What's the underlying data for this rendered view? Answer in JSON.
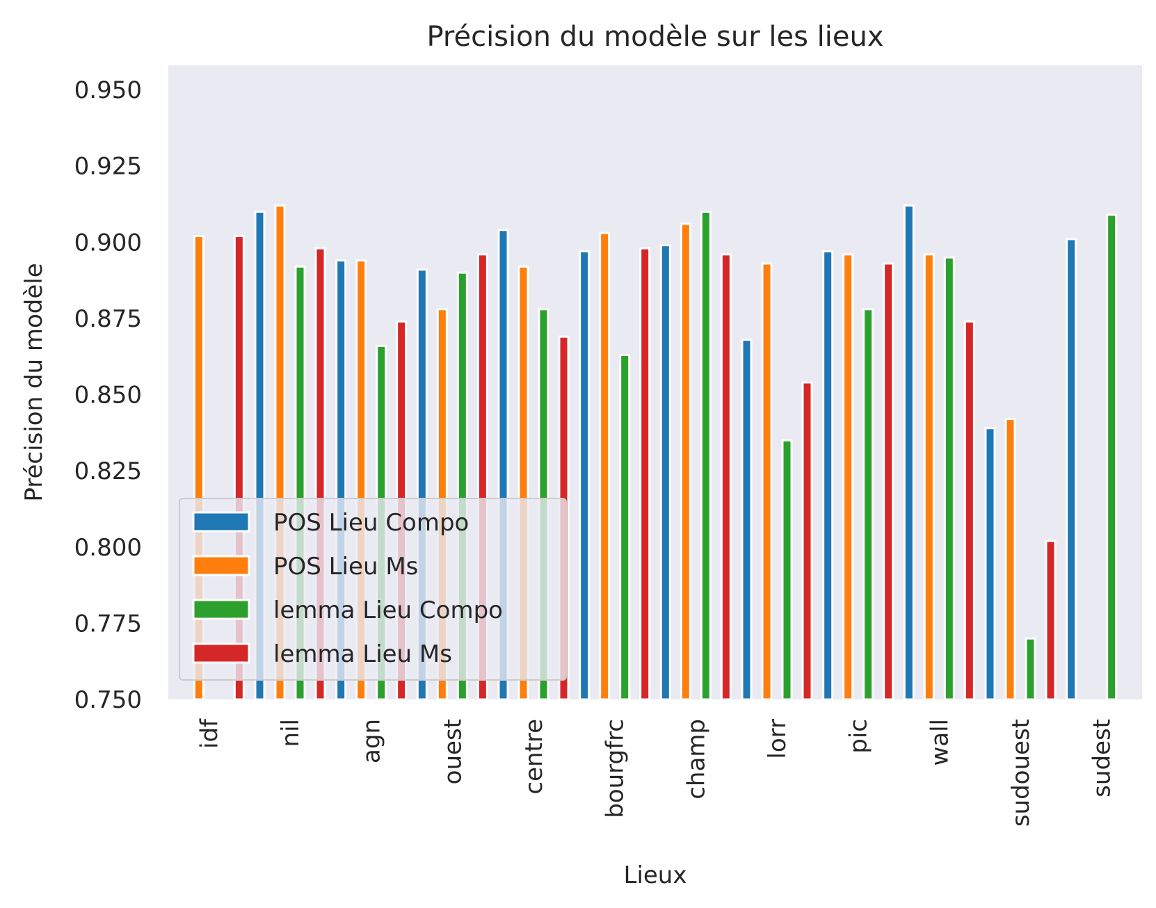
{
  "chart_data": {
    "type": "bar",
    "title": "Précision du modèle sur les lieux",
    "xlabel": "Lieux",
    "ylabel": "Précision du modèle",
    "categories": [
      "idf",
      "nil",
      "agn",
      "ouest",
      "centre",
      "bourgfrc",
      "champ",
      "lorr",
      "pic",
      "wall",
      "sudouest",
      "sudest"
    ],
    "ylim": [
      0.75,
      0.958
    ],
    "yticks": [
      "0.750",
      "0.775",
      "0.800",
      "0.825",
      "0.850",
      "0.875",
      "0.900",
      "0.925",
      "0.950"
    ],
    "series": [
      {
        "name": "POS Lieu Compo",
        "color": "#1f77b4",
        "values": [
          null,
          0.91,
          0.894,
          0.891,
          0.904,
          0.897,
          0.899,
          0.868,
          0.897,
          0.912,
          0.839,
          0.901
        ]
      },
      {
        "name": "POS Lieu Ms",
        "color": "#ff7f0e",
        "values": [
          0.902,
          0.912,
          0.894,
          0.878,
          0.892,
          0.903,
          0.906,
          0.893,
          0.896,
          0.896,
          0.842,
          null
        ]
      },
      {
        "name": "lemma Lieu Compo",
        "color": "#2ca02c",
        "values": [
          null,
          0.892,
          0.866,
          0.89,
          0.878,
          0.863,
          0.91,
          0.835,
          0.878,
          0.895,
          0.77,
          0.909
        ]
      },
      {
        "name": "lemma Lieu Ms",
        "color": "#d62728",
        "values": [
          0.902,
          0.898,
          0.874,
          0.896,
          0.869,
          0.898,
          0.896,
          0.854,
          0.893,
          0.874,
          0.802,
          null
        ]
      }
    ],
    "grid": false,
    "legend_position": "bottom-left",
    "background": "#eaeaf2"
  }
}
